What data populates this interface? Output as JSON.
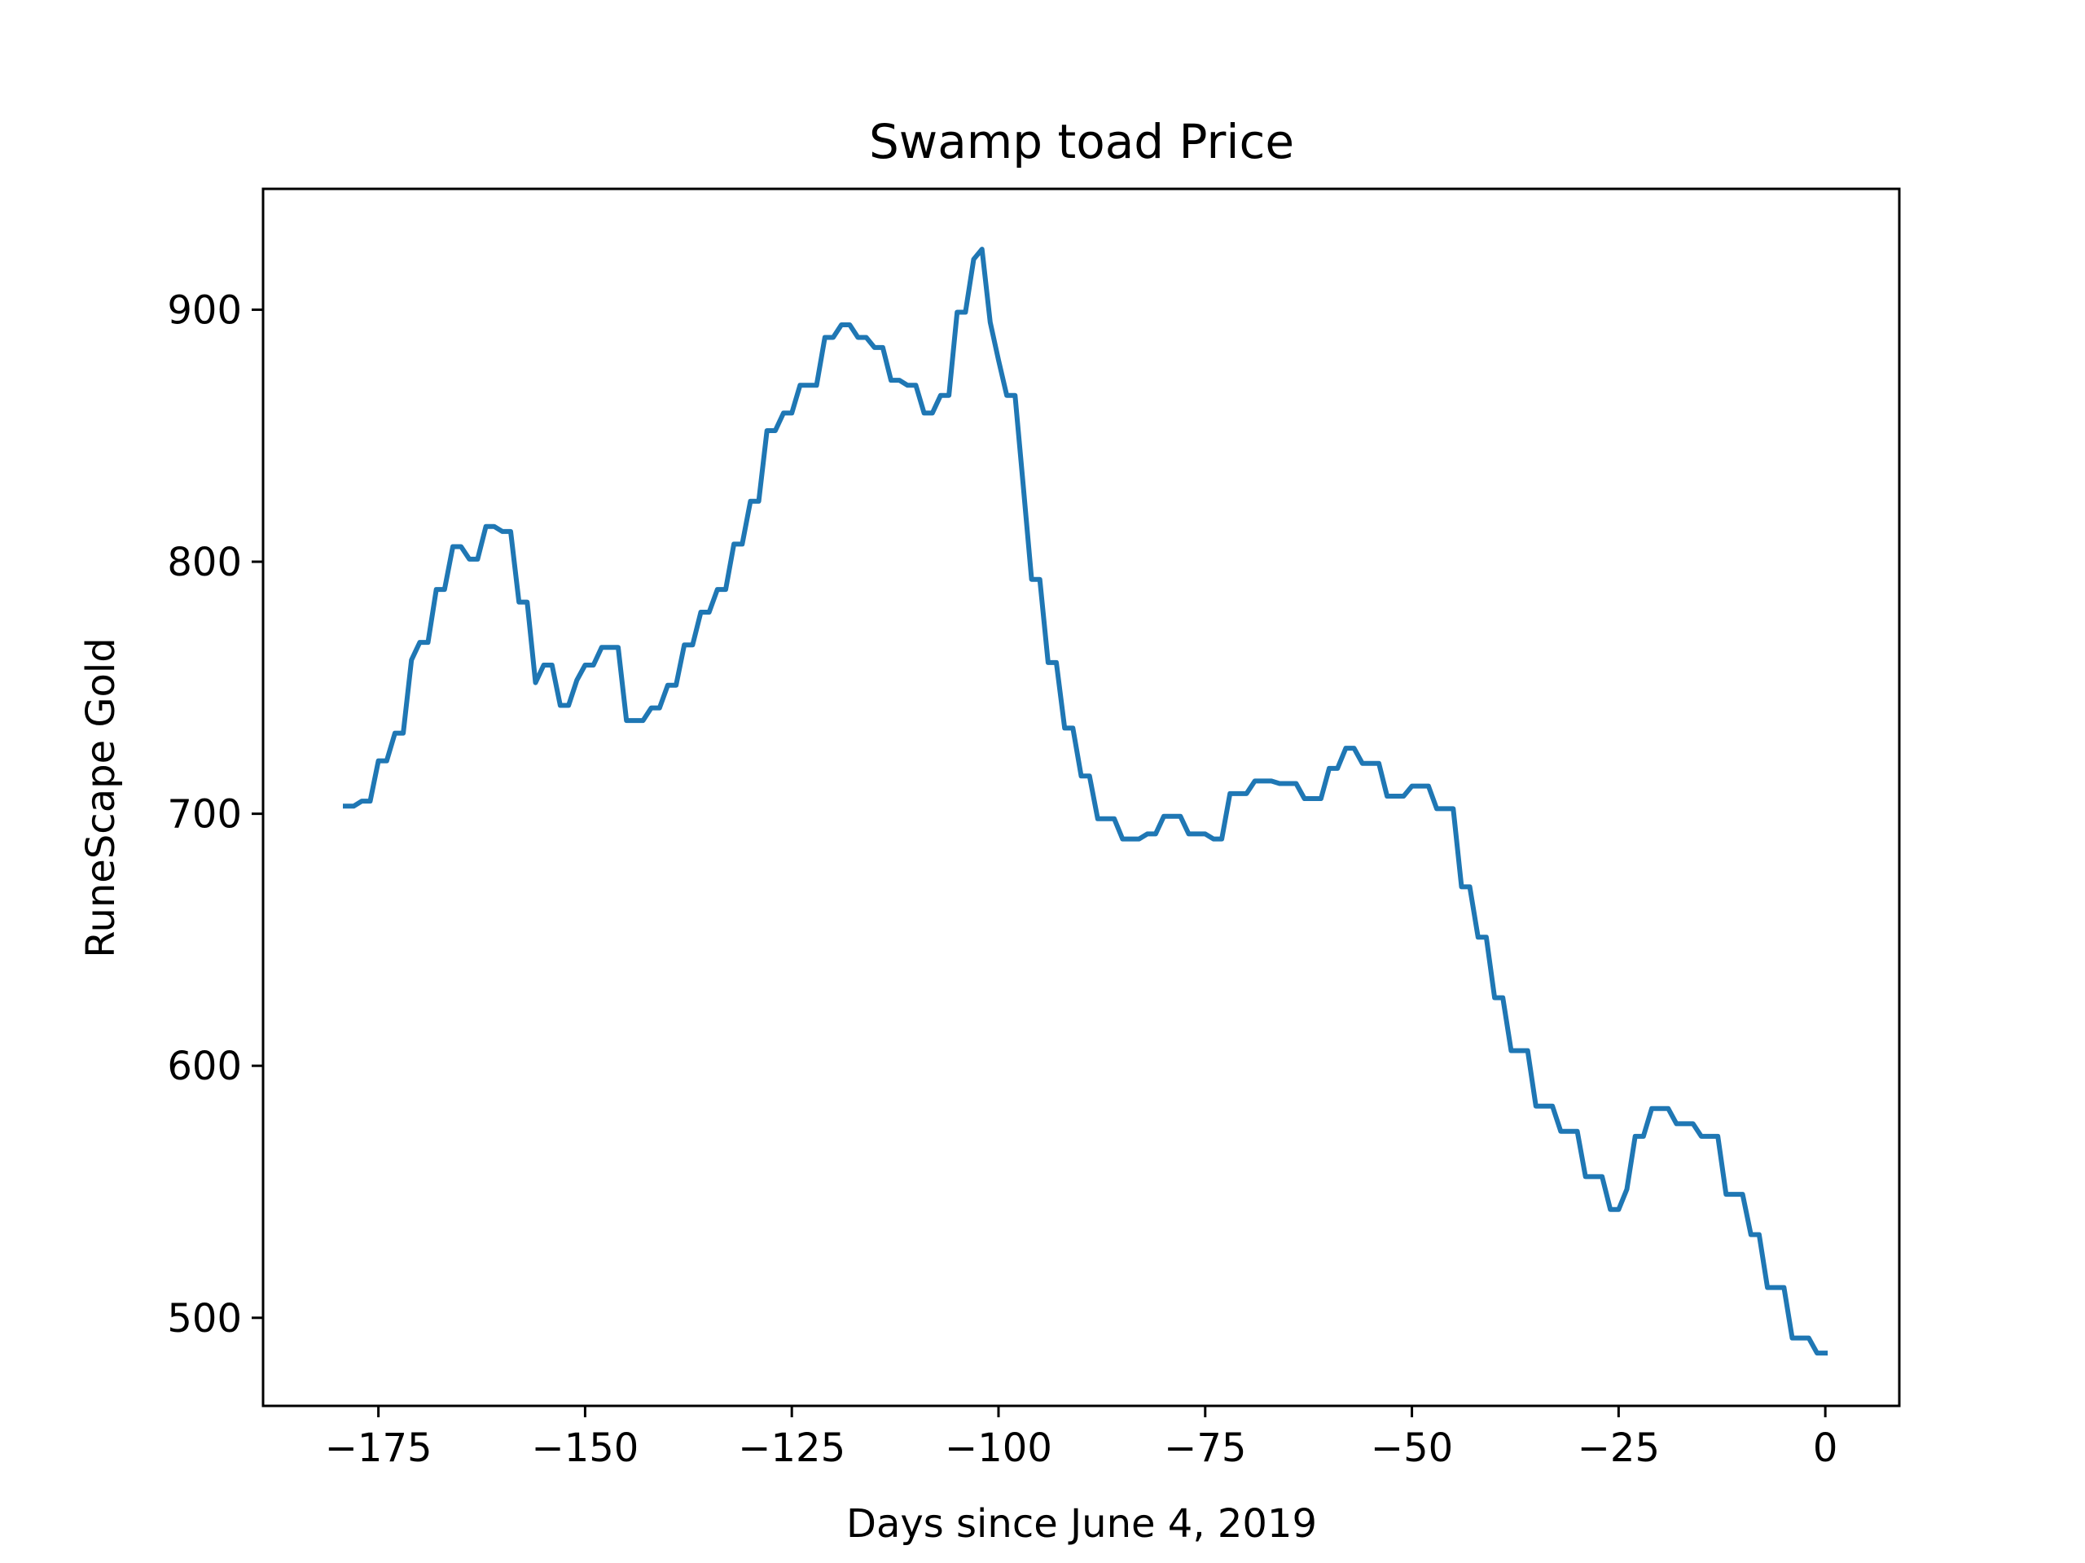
{
  "chart_data": {
    "type": "line",
    "title": "Swamp toad Price",
    "xlabel": "Days since June 4, 2019",
    "ylabel": "RuneScape Gold",
    "xlim": [
      -188.95,
      8.95
    ],
    "ylim": [
      465.05,
      947.95
    ],
    "xticks": [
      -175,
      -150,
      -125,
      -100,
      -75,
      -50,
      -25,
      0
    ],
    "xtick_labels": [
      "−175",
      "−150",
      "−125",
      "−100",
      "−75",
      "−50",
      "−25",
      "0"
    ],
    "yticks": [
      500,
      600,
      700,
      800,
      900
    ],
    "ytick_labels": [
      "500",
      "600",
      "700",
      "800",
      "900"
    ],
    "grid": false,
    "series": [
      {
        "color": "#1f77b4",
        "x": [
          -179,
          -178,
          -177,
          -176,
          -175,
          -174,
          -173,
          -172,
          -171,
          -170,
          -169,
          -168,
          -167,
          -166,
          -165,
          -164,
          -163,
          -162,
          -161,
          -160,
          -159,
          -158,
          -157,
          -156,
          -155,
          -154,
          -153,
          -152,
          -151,
          -150,
          -149,
          -148,
          -147,
          -146,
          -145,
          -144,
          -143,
          -142,
          -141,
          -140,
          -139,
          -138,
          -137,
          -136,
          -135,
          -134,
          -133,
          -132,
          -131,
          -130,
          -129,
          -128,
          -127,
          -126,
          -125,
          -124,
          -123,
          -122,
          -121,
          -120,
          -119,
          -118,
          -117,
          -116,
          -115,
          -114,
          -113,
          -112,
          -111,
          -110,
          -109,
          -108,
          -107,
          -106,
          -105,
          -104,
          -103,
          -102,
          -101,
          -100,
          -99,
          -98,
          -97,
          -96,
          -95,
          -94,
          -93,
          -92,
          -91,
          -90,
          -89,
          -88,
          -87,
          -86,
          -85,
          -84,
          -83,
          -82,
          -81,
          -80,
          -79,
          -78,
          -77,
          -76,
          -75,
          -74,
          -73,
          -72,
          -71,
          -70,
          -69,
          -68,
          -67,
          -66,
          -65,
          -64,
          -63,
          -62,
          -61,
          -60,
          -59,
          -58,
          -57,
          -56,
          -55,
          -54,
          -53,
          -52,
          -51,
          -50,
          -49,
          -48,
          -47,
          -46,
          -45,
          -44,
          -43,
          -42,
          -41,
          -40,
          -39,
          -38,
          -37,
          -36,
          -35,
          -34,
          -33,
          -32,
          -31,
          -30,
          -29,
          -28,
          -27,
          -26,
          -25,
          -24,
          -23,
          -22,
          -21,
          -20,
          -19,
          -18,
          -17,
          -16,
          -15,
          -14,
          -13,
          -12,
          -11,
          -10,
          -9,
          -8,
          -7,
          -6,
          -5,
          -4,
          -3,
          -2,
          -1,
          0
        ],
        "y": [
          703,
          703,
          705,
          705,
          721,
          721,
          732,
          732,
          761,
          768,
          768,
          789,
          789,
          806,
          806,
          801,
          801,
          814,
          814,
          812,
          812,
          784,
          784,
          752,
          759,
          759,
          743,
          743,
          753,
          759,
          759,
          766,
          766,
          766,
          737,
          737,
          737,
          742,
          742,
          751,
          751,
          767,
          767,
          780,
          780,
          789,
          789,
          807,
          807,
          824,
          824,
          852,
          852,
          859,
          859,
          870,
          870,
          870,
          889,
          889,
          894,
          894,
          889,
          889,
          885,
          885,
          872,
          872,
          870,
          870,
          859,
          859,
          866,
          866,
          899,
          899,
          920,
          924,
          895,
          880,
          866,
          866,
          830,
          793,
          793,
          760,
          760,
          734,
          734,
          715,
          715,
          698,
          698,
          698,
          690,
          690,
          690,
          692,
          692,
          699,
          699,
          699,
          692,
          692,
          692,
          690,
          690,
          708,
          708,
          708,
          713,
          713,
          713,
          712,
          712,
          712,
          706,
          706,
          706,
          718,
          718,
          726,
          726,
          720,
          720,
          720,
          707,
          707,
          707,
          711,
          711,
          711,
          702,
          702,
          702,
          671,
          671,
          651,
          651,
          627,
          627,
          606,
          606,
          606,
          584,
          584,
          584,
          574,
          574,
          574,
          556,
          556,
          556,
          543,
          543,
          551,
          572,
          572,
          583,
          583,
          583,
          577,
          577,
          577,
          572,
          572,
          572,
          549,
          549,
          549,
          533,
          533,
          512,
          512,
          512,
          492,
          492,
          492,
          486,
          486
        ]
      }
    ]
  }
}
